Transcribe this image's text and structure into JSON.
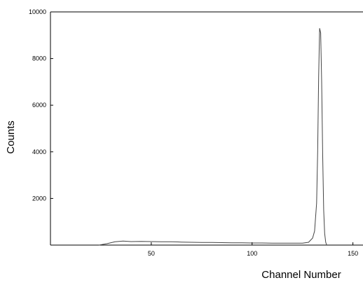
{
  "chart_data": {
    "type": "line",
    "title": "",
    "xlabel": "Channel Number",
    "ylabel": "Counts",
    "xlim": [
      0,
      155
    ],
    "ylim": [
      0,
      10000
    ],
    "x_ticks": [
      50,
      100,
      150
    ],
    "x_tick_labels": [
      "50",
      "100",
      "150"
    ],
    "y_ticks": [
      2000,
      4000,
      6000,
      8000,
      10000
    ],
    "y_tick_labels": [
      "2000",
      "4000",
      "6000",
      "8000",
      "10000"
    ],
    "grid": false,
    "legend": "none",
    "line_color": "#444444",
    "series": [
      {
        "x": [
          24,
          28,
          32,
          36,
          40,
          45,
          50,
          55,
          60,
          65,
          70,
          75,
          80,
          85,
          90,
          95,
          100,
          105,
          110,
          115,
          120,
          125,
          128,
          130,
          131,
          132,
          132.5,
          133,
          133.5,
          134,
          134.5,
          135,
          135.5,
          136,
          136.5,
          137
        ],
        "values": [
          0,
          60,
          140,
          170,
          150,
          160,
          150,
          140,
          145,
          130,
          120,
          110,
          115,
          105,
          100,
          95,
          90,
          90,
          85,
          85,
          80,
          80,
          120,
          300,
          600,
          1800,
          4000,
          7200,
          9300,
          9100,
          7000,
          3800,
          1500,
          500,
          120,
          0
        ]
      }
    ]
  }
}
